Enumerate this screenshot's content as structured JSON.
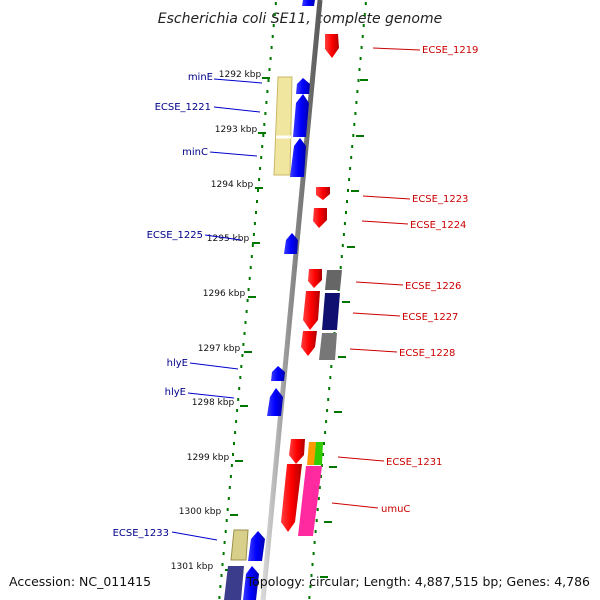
{
  "title": "Escherichia coli SE11, complete genome",
  "accession": "Accession: NC_011415",
  "topology": "Topology: circular; Length: 4,887,515 bp; Genes: 4,786",
  "colors": {
    "forward_label": "#00008b",
    "reverse_label": "#cc0000",
    "forward_gene": "#0000ff",
    "reverse_gene": "#ff0000",
    "tick": "#007700",
    "backbone": "#888888"
  },
  "kbp_ticks": [
    {
      "label": "1292 kbp"
    },
    {
      "label": "1293 kbp"
    },
    {
      "label": "1294 kbp"
    },
    {
      "label": "1295 kbp"
    },
    {
      "label": "1296 kbp"
    },
    {
      "label": "1297 kbp"
    },
    {
      "label": "1298 kbp"
    },
    {
      "label": "1299 kbp"
    },
    {
      "label": "1300 kbp"
    },
    {
      "label": "1301 kbp"
    }
  ],
  "forward_genes": [
    {
      "name": "minE"
    },
    {
      "name": "ECSE_1221"
    },
    {
      "name": "minC"
    },
    {
      "name": "ECSE_1225"
    },
    {
      "name": "hlyE"
    },
    {
      "name": "hlyE"
    },
    {
      "name": "ECSE_1233"
    }
  ],
  "reverse_genes": [
    {
      "name": "ECSE_1219"
    },
    {
      "name": "ECSE_1223"
    },
    {
      "name": "ECSE_1224"
    },
    {
      "name": "ECSE_1226"
    },
    {
      "name": "ECSE_1227"
    },
    {
      "name": "ECSE_1228"
    },
    {
      "name": "ECSE_1231"
    },
    {
      "name": "umuC"
    }
  ]
}
